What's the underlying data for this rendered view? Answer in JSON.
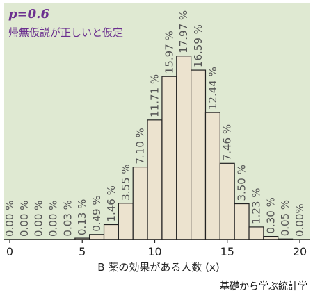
{
  "chart_data": {
    "type": "bar",
    "annotation_main": "p=0.6",
    "annotation_sub": "帰無仮説が正しいと仮定",
    "xlabel": "B 薬の効果がある人数 (x)",
    "xticks": [
      "0",
      "5",
      "10",
      "15",
      "20"
    ],
    "xlim": [
      0,
      20
    ],
    "ylim": [
      0,
      18.5
    ],
    "x": [
      0,
      1,
      2,
      3,
      4,
      5,
      6,
      7,
      8,
      9,
      10,
      11,
      12,
      13,
      14,
      15,
      16,
      17,
      18,
      19,
      20
    ],
    "values": [
      0.0,
      0.0,
      0.0,
      0.0,
      0.03,
      0.13,
      0.49,
      1.46,
      3.55,
      7.1,
      11.71,
      15.97,
      17.97,
      16.59,
      12.44,
      7.46,
      3.5,
      1.23,
      0.3,
      0.05,
      0.0
    ],
    "labels": [
      "0.00 %",
      "0.00 %",
      "0.00 %",
      "0.00 %",
      "0.03 %",
      "0.13 %",
      "0.49 %",
      "1.46 %",
      "3.55 %",
      "7.10 %",
      "11.71 %",
      "15.97 %",
      "17.97 %",
      "16.59 %",
      "12.44 %",
      "7.46 %",
      "3.50 %",
      "1.23 %",
      "0.30 %",
      "0.05 %",
      "0.00%"
    ],
    "colors": {
      "background": "#dfe9d2",
      "bar_fill": "#ece3cf",
      "bar_stroke": "#222222",
      "label": "#555555",
      "accent": "#6b2f8f"
    }
  },
  "credit": "基礎から学ぶ統計学"
}
